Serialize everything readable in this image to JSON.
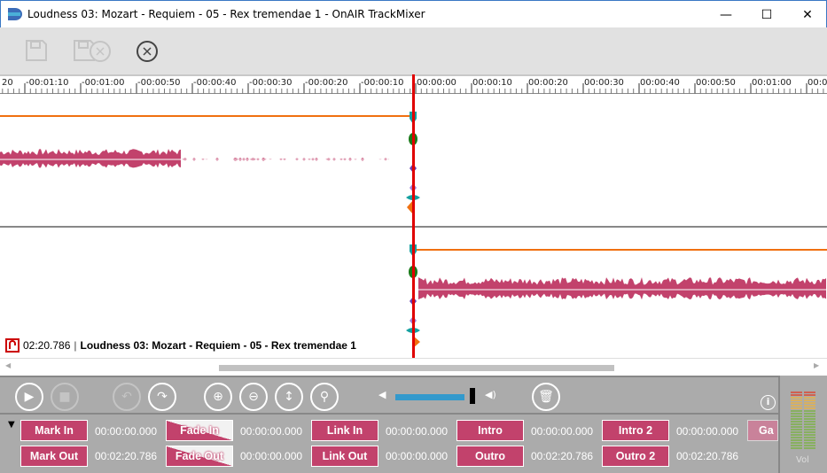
{
  "window": {
    "title": "Loudness 03: Mozart - Requiem - 05 - Rex tremendae 1 - OnAIR TrackMixer",
    "minimize": "—",
    "maximize": "☐",
    "close": "✕"
  },
  "toolbar": {
    "items": [
      {
        "icon": "save-icon",
        "enabled": false
      },
      {
        "icon": "save-discard-icon",
        "enabled": false
      },
      {
        "icon": "close-circle-icon",
        "enabled": true
      }
    ]
  },
  "ruler": {
    "labels": [
      "20",
      "-00:01:10",
      "-00:01:00",
      "-00:00:50",
      "-00:00:40",
      "-00:00:30",
      "-00:00:20",
      "-00:00:10",
      "00:00:00",
      "00:00:10",
      "00:00:20",
      "00:00:30",
      "00:00:40",
      "00:00:50",
      "00:01:00",
      "00:0"
    ]
  },
  "track": {
    "duration": "02:20.786",
    "name": "Loudness 03: Mozart - Requiem - 05 - Rex tremendae 1"
  },
  "colors": {
    "waveform": "#c2426c",
    "playhead": "#e00000",
    "fadeline": "#f07010",
    "button": "#c2426c",
    "volume": "#3399cc"
  },
  "controls": {
    "volume_percent": 100,
    "info": "i",
    "vu_label": "Vol"
  },
  "marks": {
    "row1": [
      {
        "label": "Mark In",
        "value": "00:00:00.000"
      },
      {
        "label": "Fade In",
        "value": "00:00:00.000"
      },
      {
        "label": "Link In",
        "value": "00:00:00.000"
      },
      {
        "label": "Intro",
        "value": "00:00:00.000"
      },
      {
        "label": "Intro 2",
        "value": "00:00:00.000"
      },
      {
        "label": "Ga",
        "value": ""
      }
    ],
    "row2": [
      {
        "label": "Mark Out",
        "value": "00:02:20.786"
      },
      {
        "label": "Fade Out",
        "value": "00:00:00.000"
      },
      {
        "label": "Link Out",
        "value": "00:00:00.000"
      },
      {
        "label": "Outro",
        "value": "00:02:20.786"
      },
      {
        "label": "Outro 2",
        "value": "00:02:20.786"
      }
    ]
  }
}
